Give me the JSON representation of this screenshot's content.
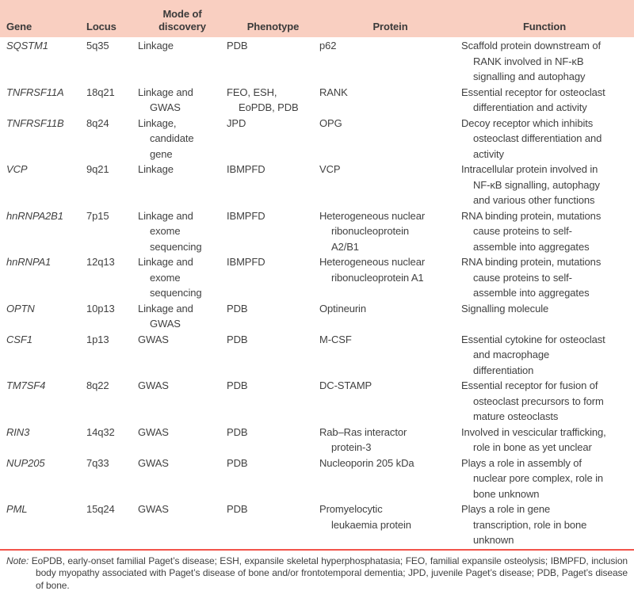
{
  "colors": {
    "header_bg": "#f9cfc1",
    "rule": "#f2544b",
    "text": "#414141"
  },
  "table": {
    "headers": [
      {
        "key": "gene",
        "label": "Gene"
      },
      {
        "key": "locus",
        "label": "Locus"
      },
      {
        "key": "mode",
        "label": "Mode of discovery"
      },
      {
        "key": "phenotype",
        "label": "Phenotype"
      },
      {
        "key": "protein",
        "label": "Protein"
      },
      {
        "key": "function",
        "label": "Function"
      }
    ],
    "rows": [
      {
        "gene": [
          "SQSTM1"
        ],
        "locus": [
          "5q35"
        ],
        "mode": [
          "Linkage"
        ],
        "phenotype": [
          "PDB"
        ],
        "protein": [
          "p62"
        ],
        "function": [
          "Scaffold protein downstream of",
          "RANK involved in NF-κB",
          "signalling and autophagy"
        ]
      },
      {
        "gene": [
          "TNFRSF11A"
        ],
        "locus": [
          "18q21"
        ],
        "mode": [
          "Linkage and",
          "GWAS"
        ],
        "phenotype": [
          "FEO, ESH,",
          "EoPDB, PDB"
        ],
        "protein": [
          "RANK"
        ],
        "function": [
          "Essential receptor for osteoclast",
          "differentiation and activity"
        ]
      },
      {
        "gene": [
          "TNFRSF11B"
        ],
        "locus": [
          "8q24"
        ],
        "mode": [
          "Linkage,",
          "candidate",
          "gene"
        ],
        "phenotype": [
          "JPD"
        ],
        "protein": [
          "OPG"
        ],
        "function": [
          "Decoy receptor which inhibits",
          "osteoclast differentiation and",
          "activity"
        ]
      },
      {
        "gene": [
          "VCP"
        ],
        "locus": [
          "9q21"
        ],
        "mode": [
          "Linkage"
        ],
        "phenotype": [
          "IBMPFD"
        ],
        "protein": [
          "VCP"
        ],
        "function": [
          "Intracellular protein involved in",
          "NF-κB signalling, autophagy",
          "and various other functions"
        ]
      },
      {
        "gene": [
          "hnRNPA2B1"
        ],
        "locus": [
          "7p15"
        ],
        "mode": [
          "Linkage and",
          "exome",
          "sequencing"
        ],
        "phenotype": [
          "IBMPFD"
        ],
        "protein": [
          "Heterogeneous nuclear",
          "ribonucleoprotein",
          "A2/B1"
        ],
        "function": [
          "RNA binding protein, mutations",
          "cause proteins to self-",
          "assemble into aggregates"
        ]
      },
      {
        "gene": [
          "hnRNPA1"
        ],
        "locus": [
          "12q13"
        ],
        "mode": [
          "Linkage and",
          "exome",
          "sequencing"
        ],
        "phenotype": [
          "IBMPFD"
        ],
        "protein": [
          "Heterogeneous nuclear",
          "ribonucleoprotein A1"
        ],
        "function": [
          "RNA binding protein, mutations",
          "cause proteins to self-",
          "assemble into aggregates"
        ]
      },
      {
        "gene": [
          "OPTN"
        ],
        "locus": [
          "10p13"
        ],
        "mode": [
          "Linkage and",
          "GWAS"
        ],
        "phenotype": [
          "PDB"
        ],
        "protein": [
          "Optineurin"
        ],
        "function": [
          "Signalling molecule"
        ]
      },
      {
        "gene": [
          "CSF1"
        ],
        "locus": [
          "1p13"
        ],
        "mode": [
          "GWAS"
        ],
        "phenotype": [
          "PDB"
        ],
        "protein": [
          "M-CSF"
        ],
        "function": [
          "Essential cytokine for osteoclast",
          "and macrophage",
          "differentiation"
        ]
      },
      {
        "gene": [
          "TM7SF4"
        ],
        "locus": [
          "8q22"
        ],
        "mode": [
          "GWAS"
        ],
        "phenotype": [
          "PDB"
        ],
        "protein": [
          "DC-STAMP"
        ],
        "function": [
          "Essential receptor for fusion of",
          "osteoclast precursors to form",
          "mature osteoclasts"
        ]
      },
      {
        "gene": [
          "RIN3"
        ],
        "locus": [
          "14q32"
        ],
        "mode": [
          "GWAS"
        ],
        "phenotype": [
          "PDB"
        ],
        "protein": [
          "Rab–Ras interactor",
          "protein-3"
        ],
        "function": [
          "Involved in vescicular trafficking,",
          "role in bone as yet unclear"
        ]
      },
      {
        "gene": [
          "NUP205"
        ],
        "locus": [
          "7q33"
        ],
        "mode": [
          "GWAS"
        ],
        "phenotype": [
          "PDB"
        ],
        "protein": [
          "Nucleoporin 205 kDa"
        ],
        "function": [
          "Plays a role in assembly of",
          "nuclear pore complex, role in",
          "bone unknown"
        ]
      },
      {
        "gene": [
          "PML"
        ],
        "locus": [
          "15q24"
        ],
        "mode": [
          "GWAS"
        ],
        "phenotype": [
          "PDB"
        ],
        "protein": [
          "Promyelocytic",
          "leukaemia protein"
        ],
        "function": [
          "Plays a role in gene",
          "transcription, role in bone",
          "unknown"
        ]
      }
    ]
  },
  "note": {
    "label": "Note:",
    "text": "EoPDB, early-onset familial Paget’s disease; ESH, expansile skeletal hyperphosphatasia; FEO, familial expansile osteolysis; IBMPFD, inclusion body myopathy associated with Paget’s disease of bone and/or frontotemporal dementia; JPD, juvenile Paget’s disease; PDB, Paget’s disease of bone."
  }
}
